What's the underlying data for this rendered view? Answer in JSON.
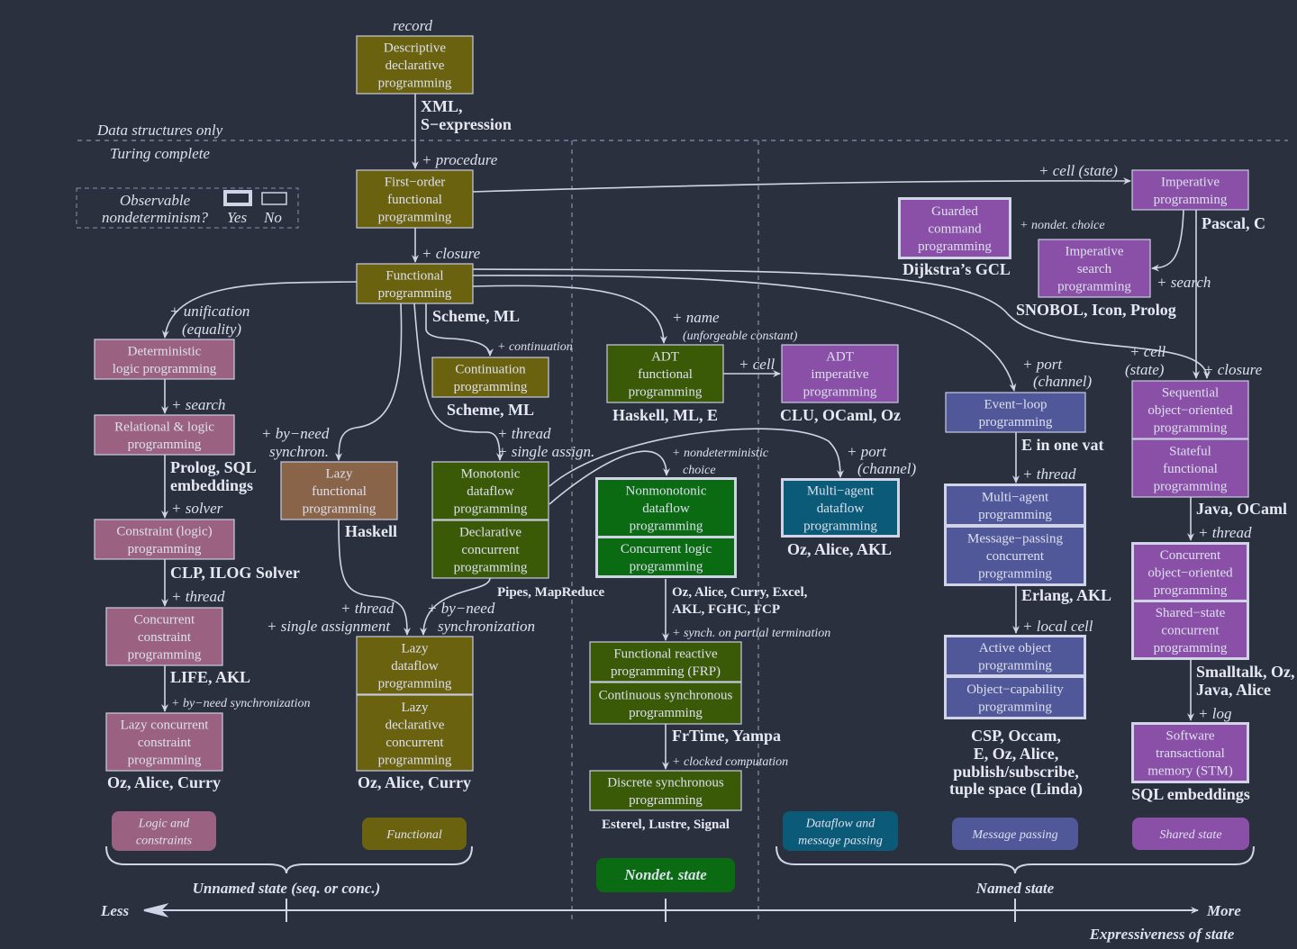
{
  "colors": {
    "background": "#2b303f",
    "olive": "#6b6210",
    "pink": "#9a6280",
    "brown": "#8a6448",
    "dark_green": "#3a5a08",
    "green": "#0a6b12",
    "teal": "#0a5a78",
    "blue": "#50589a",
    "purple": "#8a50a8",
    "line": "#d0d4e6"
  },
  "legend": {
    "title_lines": [
      "Observable",
      "nondeterminism?"
    ],
    "yes": "Yes",
    "no": "No"
  },
  "boxes": [
    {
      "lines": [
        "Descriptive",
        "declarative",
        "programming"
      ],
      "color": "olive"
    },
    {
      "lines": [
        "First−order",
        "functional",
        "programming"
      ],
      "color": "olive"
    },
    {
      "lines": [
        "Functional",
        "programming"
      ],
      "color": "olive"
    },
    {
      "lines": [
        "Deterministic",
        "logic programming"
      ],
      "color": "pink"
    },
    {
      "lines": [
        "Relational & logic",
        "programming"
      ],
      "color": "pink"
    },
    {
      "lines": [
        "Constraint (logic)",
        "programming"
      ],
      "color": "pink"
    },
    {
      "lines": [
        "Concurrent",
        "constraint",
        "programming"
      ],
      "color": "pink"
    },
    {
      "lines": [
        "Lazy concurrent",
        "constraint",
        "programming"
      ],
      "color": "pink"
    },
    {
      "lines": [
        "Lazy",
        "functional",
        "programming"
      ],
      "color": "brown"
    },
    {
      "lines": [
        "Continuation",
        "programming"
      ],
      "color": "olive"
    },
    {
      "lines": [
        "Monotonic",
        "dataflow",
        "programming"
      ],
      "color": "dark_green"
    },
    {
      "lines": [
        "Declarative",
        "concurrent",
        "programming"
      ],
      "color": "dark_green"
    },
    {
      "lines": [
        "Lazy",
        "dataflow",
        "programming"
      ],
      "color": "olive"
    },
    {
      "lines": [
        "Lazy",
        "declarative",
        "concurrent",
        "programming"
      ],
      "color": "olive"
    },
    {
      "lines": [
        "Nonmonotonic",
        "dataflow",
        "programming"
      ],
      "color": "green",
      "nondeterministic": true
    },
    {
      "lines": [
        "Concurrent logic",
        "programming"
      ],
      "color": "green",
      "nondeterministic": true
    },
    {
      "lines": [
        "Functional reactive",
        "programming (FRP)"
      ],
      "color": "dark_green"
    },
    {
      "lines": [
        "Continuous synchronous",
        "programming"
      ],
      "color": "dark_green"
    },
    {
      "lines": [
        "Discrete synchronous",
        "programming"
      ],
      "color": "dark_green"
    },
    {
      "lines": [
        "ADT",
        "functional",
        "programming"
      ],
      "color": "dark_green"
    },
    {
      "lines": [
        "ADT",
        "imperative",
        "programming"
      ],
      "color": "purple"
    },
    {
      "lines": [
        "Multi−agent",
        "dataflow",
        "programming"
      ],
      "color": "teal",
      "nondeterministic": true
    },
    {
      "lines": [
        "Event−loop",
        "programming"
      ],
      "color": "blue"
    },
    {
      "lines": [
        "Multi−agent",
        "programming"
      ],
      "color": "blue",
      "nondeterministic": true
    },
    {
      "lines": [
        "Message−passing",
        "concurrent",
        "programming"
      ],
      "color": "blue",
      "nondeterministic": true
    },
    {
      "lines": [
        "Active object",
        "programming"
      ],
      "color": "blue",
      "nondeterministic": true
    },
    {
      "lines": [
        "Object−capability",
        "programming"
      ],
      "color": "blue",
      "nondeterministic": true
    },
    {
      "lines": [
        "Imperative",
        "programming"
      ],
      "color": "purple"
    },
    {
      "lines": [
        "Guarded",
        "command",
        "programming"
      ],
      "color": "purple",
      "nondeterministic": true
    },
    {
      "lines": [
        "Imperative",
        "search",
        "programming"
      ],
      "color": "purple"
    },
    {
      "lines": [
        "Sequential",
        "object−oriented",
        "programming"
      ],
      "color": "purple"
    },
    {
      "lines": [
        "Stateful",
        "functional",
        "programming"
      ],
      "color": "purple"
    },
    {
      "lines": [
        "Concurrent",
        "object−oriented",
        "programming"
      ],
      "color": "purple",
      "nondeterministic": true
    },
    {
      "lines": [
        "Shared−state",
        "concurrent",
        "programming"
      ],
      "color": "purple",
      "nondeterministic": true
    },
    {
      "lines": [
        "Software",
        "transactional",
        "memory (STM)"
      ],
      "color": "purple",
      "nondeterministic": true
    }
  ],
  "categories": [
    {
      "lines": [
        "Logic and",
        "constraints"
      ],
      "color": "pink"
    },
    {
      "lines": [
        "Functional"
      ],
      "color": "olive"
    },
    {
      "lines": [
        "Nondet. state"
      ],
      "color": "green"
    },
    {
      "lines": [
        "Dataflow and",
        "message passing"
      ],
      "color": "teal"
    },
    {
      "lines": [
        "Message passing"
      ],
      "color": "blue"
    },
    {
      "lines": [
        "Shared state"
      ],
      "color": "purple"
    }
  ],
  "edge_labels": [
    "record",
    "Data structures only",
    "Turing complete",
    "+ procedure",
    "+ cell (state)",
    "+ closure",
    "+ nondet. choice",
    "+ search",
    "+ unification",
    "(equality)",
    "+ name",
    "(unforgeable constant)",
    "+ continuation",
    "+ cell",
    "+ port",
    "(channel)",
    "+ cell",
    "(state)",
    "+ closure",
    "+ search",
    "+ by−need",
    "synchron.",
    "+ thread",
    "+ single assign.",
    "+ nondeterministic",
    "choice",
    "+ port",
    "(channel)",
    "+ thread",
    "+ solver",
    "+ thread",
    "+ thread",
    "+ thread",
    "+ single assignment",
    "+ by−need",
    "synchronization",
    "+ local cell",
    "+ synch. on partial termination",
    "+ by−need synchronization",
    "+ log",
    "+ clocked computation"
  ],
  "languages": [
    "XML,",
    "S−expression",
    "Pascal, C",
    "Dijkstra’s GCL",
    "SNOBOL, Icon, Prolog",
    "Scheme, ML",
    "Scheme, ML",
    "Haskell, ML, E",
    "CLU, OCaml, Oz",
    "E in one vat",
    "Prolog, SQL",
    "embeddings",
    "Java, OCaml",
    "Haskell",
    "Oz, Alice, AKL",
    "CLP, ILOG Solver",
    "Pipes, MapReduce",
    "Oz, Alice, Curry, Excel,",
    "AKL, FGHC, FCP",
    "Erlang, AKL",
    "LIFE, AKL",
    "Smalltalk, Oz,",
    "Java, Alice",
    "FrTime, Yampa",
    "CSP, Occam,",
    "E, Oz, Alice,",
    "publish/subscribe,",
    "tuple space (Linda)",
    "Oz, Alice, Curry",
    "Oz, Alice, Curry",
    "SQL embeddings",
    "Esterel, Lustre, Signal"
  ],
  "axis": {
    "unnamed_state": "Unnamed state (seq. or conc.)",
    "named_state": "Named state",
    "less": "Less",
    "more": "More",
    "title": "Expressiveness of state"
  }
}
